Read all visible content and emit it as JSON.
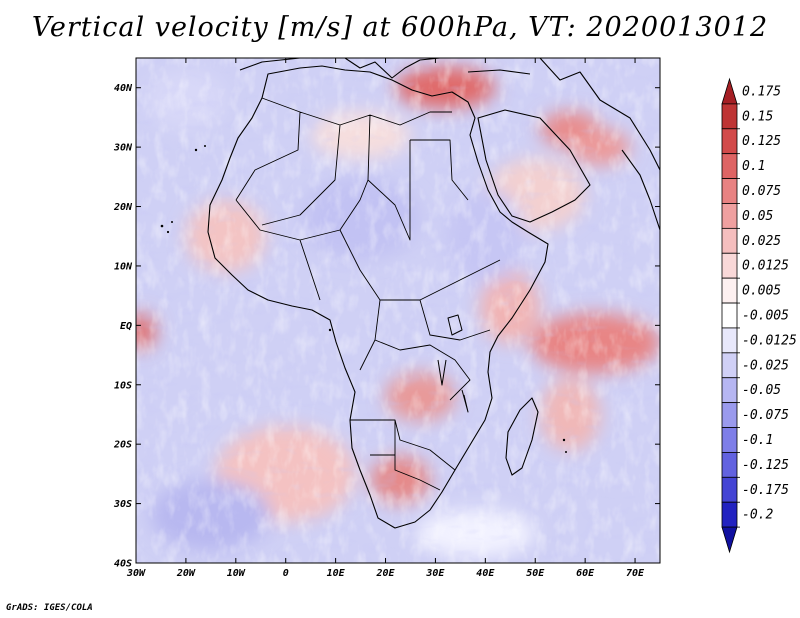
{
  "title": "Vertical velocity [m/s] at 600hPa, VT: 2020013012",
  "credit": "GrADS: IGES/COLA",
  "map": {
    "projection": "lat-lon",
    "lon_range": [
      -30,
      75
    ],
    "lat_range": [
      -40,
      45
    ],
    "lon_ticks": [
      {
        "value": -30,
        "label": "30W"
      },
      {
        "value": -20,
        "label": "20W"
      },
      {
        "value": -10,
        "label": "10W"
      },
      {
        "value": 0,
        "label": "0"
      },
      {
        "value": 10,
        "label": "10E"
      },
      {
        "value": 20,
        "label": "20E"
      },
      {
        "value": 30,
        "label": "30E"
      },
      {
        "value": 40,
        "label": "40E"
      },
      {
        "value": 50,
        "label": "50E"
      },
      {
        "value": 60,
        "label": "60E"
      },
      {
        "value": 70,
        "label": "70E"
      }
    ],
    "lat_ticks": [
      {
        "value": 40,
        "label": "40N"
      },
      {
        "value": 30,
        "label": "30N"
      },
      {
        "value": 20,
        "label": "20N"
      },
      {
        "value": 10,
        "label": "10N"
      },
      {
        "value": 0,
        "label": "EQ"
      },
      {
        "value": -10,
        "label": "10S"
      },
      {
        "value": -20,
        "label": "20S"
      },
      {
        "value": -30,
        "label": "30S"
      },
      {
        "value": -40,
        "label": "40S"
      }
    ]
  },
  "colorbar": {
    "units": "m/s",
    "bins": [
      {
        "color": "#a51f24",
        "label": "0.175"
      },
      {
        "color": "#be3434",
        "label": "0.15"
      },
      {
        "color": "#d24a4a",
        "label": "0.125"
      },
      {
        "color": "#de6464",
        "label": "0.1"
      },
      {
        "color": "#e88282",
        "label": "0.075"
      },
      {
        "color": "#efa0a0",
        "label": "0.05"
      },
      {
        "color": "#f5bebe",
        "label": "0.025"
      },
      {
        "color": "#f9d8d8",
        "label": "0.0125"
      },
      {
        "color": "#fdf0f0",
        "label": "0.005"
      },
      {
        "color": "#ffffff",
        "label": "-0.005"
      },
      {
        "color": "#e8e8fb",
        "label": "-0.0125"
      },
      {
        "color": "#d0d0f6",
        "label": "-0.025"
      },
      {
        "color": "#b6b6f2",
        "label": "-0.05"
      },
      {
        "color": "#9a9aed",
        "label": "-0.075"
      },
      {
        "color": "#7e7ee8",
        "label": "-0.1"
      },
      {
        "color": "#6262e0",
        "label": "-0.125"
      },
      {
        "color": "#4444d4",
        "label": "-0.175"
      },
      {
        "color": "#2222c0",
        "label": "-0.2"
      },
      {
        "color": "#1010a0",
        "label": ""
      }
    ]
  },
  "field": {
    "base_color": "#cfd0f5",
    "regions": [
      {
        "lon": 32,
        "lat": 40,
        "rx": 10,
        "ry": 3.5,
        "color": "#e06a6a"
      },
      {
        "lon": 57,
        "lat": 33,
        "rx": 6,
        "ry": 3,
        "color": "#e88a8a"
      },
      {
        "lon": 63,
        "lat": 30,
        "rx": 6,
        "ry": 3,
        "color": "#ec9a9a"
      },
      {
        "lon": 62,
        "lat": -3,
        "rx": 13,
        "ry": 5,
        "color": "#e88585"
      },
      {
        "lon": -29,
        "lat": -1,
        "rx": 3,
        "ry": 3,
        "color": "#e07070"
      },
      {
        "lon": 27,
        "lat": -12,
        "rx": 7,
        "ry": 4,
        "color": "#e89a9a"
      },
      {
        "lon": 23,
        "lat": -26,
        "rx": 6,
        "ry": 4,
        "color": "#e58a8a"
      },
      {
        "lon": 45,
        "lat": 3,
        "rx": 6,
        "ry": 6,
        "color": "#f1b4b4"
      },
      {
        "lon": -12,
        "lat": 15,
        "rx": 8,
        "ry": 6,
        "color": "#f3c4c4"
      },
      {
        "lon": 0,
        "lat": -25,
        "rx": 14,
        "ry": 8,
        "color": "#f4c2c2"
      },
      {
        "lon": 57,
        "lat": -15,
        "rx": 6,
        "ry": 6,
        "color": "#f0b8b8"
      },
      {
        "lon": 50,
        "lat": 22,
        "rx": 10,
        "ry": 6,
        "color": "#f3d0d0"
      },
      {
        "lon": 15,
        "lat": 32,
        "rx": 10,
        "ry": 4,
        "color": "#f6dede"
      },
      {
        "lon": 38,
        "lat": -35,
        "rx": 12,
        "ry": 4,
        "color": "#f2f2ff"
      },
      {
        "lon": -15,
        "lat": -32,
        "rx": 12,
        "ry": 6,
        "color": "#b8b8f0"
      },
      {
        "lon": 15,
        "lat": 18,
        "rx": 12,
        "ry": 7,
        "color": "#c2c2f3"
      },
      {
        "lon": 40,
        "lat": 15,
        "rx": 8,
        "ry": 8,
        "color": "#c6c6f4"
      },
      {
        "lon": -20,
        "lat": 38,
        "rx": 8,
        "ry": 5,
        "color": "#d8d8f8"
      }
    ]
  }
}
